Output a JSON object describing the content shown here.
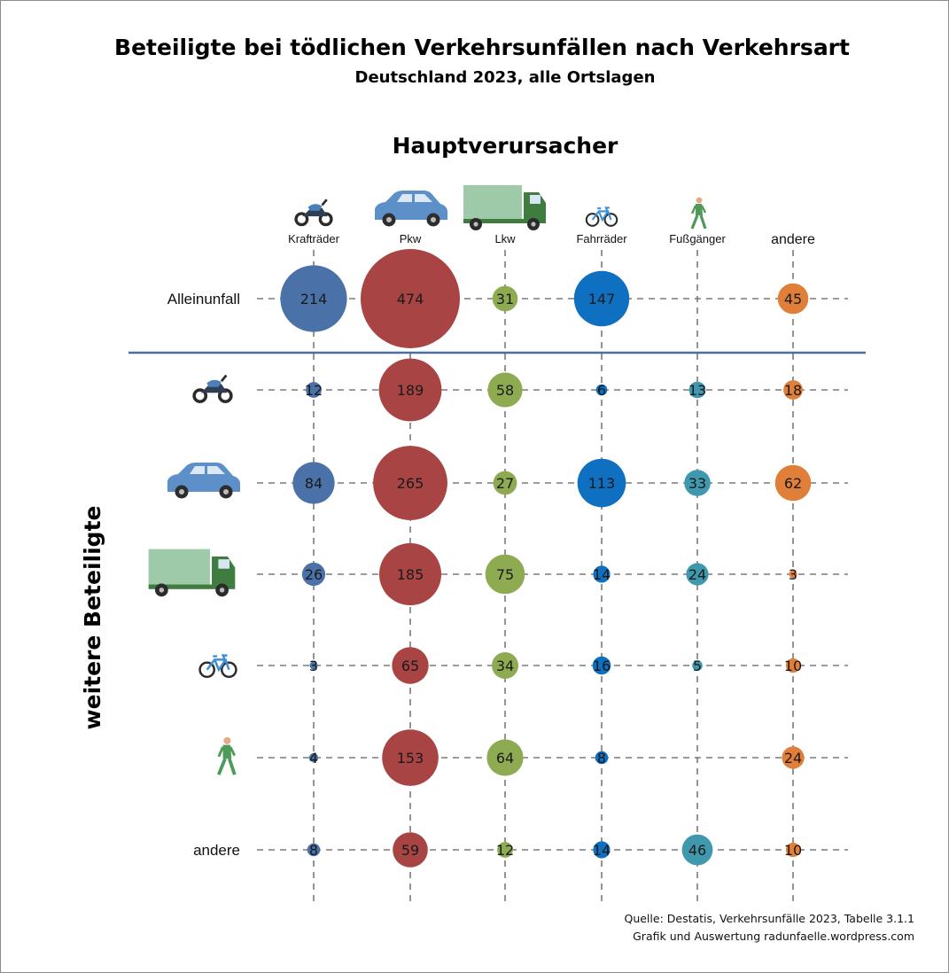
{
  "chart_data": {
    "type": "bubble-matrix",
    "title": "Beteiligte bei tödlichen Verkehrsunfällen nach Verkehrsart",
    "subtitle": "Deutschland 2023, alle Ortslagen",
    "x_title": "Hauptverursacher",
    "y_title": "weitere Beteiligte",
    "columns": [
      {
        "label": "Krafträder",
        "icon": "motorcycle-icon",
        "color": "#4a72a8"
      },
      {
        "label": "Pkw",
        "icon": "car-icon",
        "color": "#a84444"
      },
      {
        "label": "Lkw",
        "icon": "truck-icon",
        "color": "#8fab52"
      },
      {
        "label": "Fahrräder",
        "icon": "bicycle-icon",
        "color": "#0f6fc0"
      },
      {
        "label": "Fußgänger",
        "icon": "pedestrian-icon",
        "color": "#3f98ae"
      },
      {
        "label": "andere",
        "icon": "",
        "color": "#e07f3a"
      }
    ],
    "rows": [
      {
        "label": "Alleinunfall",
        "icon": "",
        "values": [
          214,
          474,
          31,
          147,
          null,
          45
        ]
      },
      {
        "label": "",
        "icon": "motorcycle-icon",
        "values": [
          12,
          189,
          58,
          6,
          13,
          18
        ]
      },
      {
        "label": "",
        "icon": "car-icon",
        "values": [
          84,
          265,
          27,
          113,
          33,
          62
        ]
      },
      {
        "label": "",
        "icon": "truck-icon",
        "values": [
          26,
          185,
          75,
          14,
          24,
          3
        ]
      },
      {
        "label": "",
        "icon": "bicycle-icon",
        "values": [
          3,
          65,
          34,
          16,
          5,
          10
        ]
      },
      {
        "label": "",
        "icon": "pedestrian-icon",
        "values": [
          4,
          153,
          64,
          8,
          null,
          24
        ]
      },
      {
        "label": "andere",
        "icon": "",
        "values": [
          8,
          59,
          12,
          14,
          46,
          10
        ]
      }
    ],
    "grid": true
  },
  "source": {
    "line1": "Quelle: Destatis, Verkehrsunfälle 2023, Tabelle 3.1.1",
    "line2": "Grafik und Auswertung radunfaelle.wordpress.com"
  }
}
